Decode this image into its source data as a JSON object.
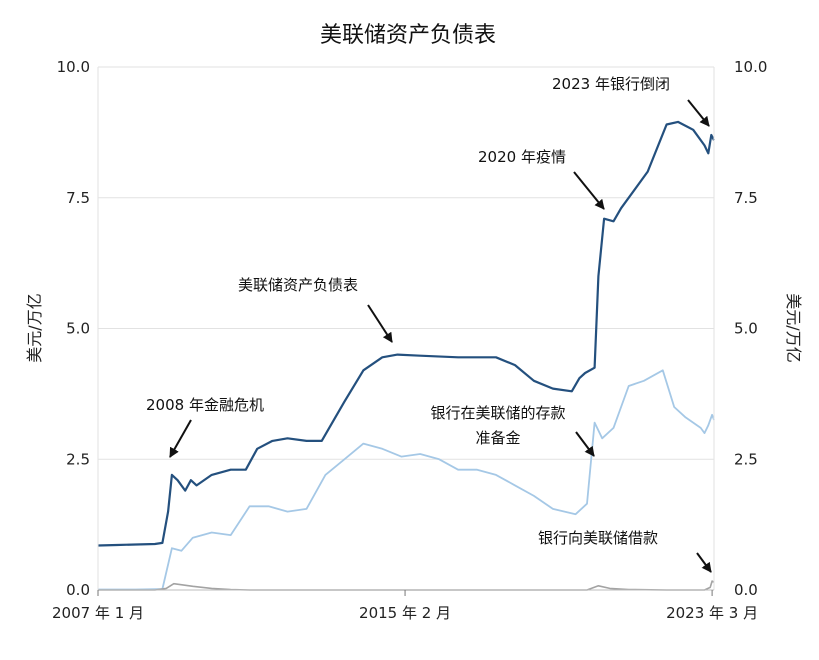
{
  "chart_data": {
    "type": "line",
    "title": "美联储资产负债表",
    "ylabel_left": "美元/万亿",
    "ylabel_right": "美元/万亿",
    "ylim": [
      0,
      10
    ],
    "y_ticks": [
      "0.0",
      "2.5",
      "5.0",
      "7.5",
      "10.0"
    ],
    "x_ticks": [
      "2007 年 1 月",
      "2015 年 2 月",
      "2023 年 3 月"
    ],
    "grid": "horizontal",
    "colors": {
      "balance_sheet": "#24507e",
      "reserves": "#a5c8e6",
      "bank_borrowing": "#a3a3a3",
      "grid": "#e2e2e2",
      "axis": "#333333"
    },
    "series": [
      {
        "name": "美联储资产负债表",
        "x": [
          2007.0,
          2007.5,
          2008.0,
          2008.5,
          2008.7,
          2008.85,
          2008.95,
          2009.1,
          2009.3,
          2009.45,
          2009.6,
          2010.0,
          2010.5,
          2010.9,
          2011.2,
          2011.6,
          2012.0,
          2012.5,
          2012.9,
          2013.5,
          2014.0,
          2014.5,
          2014.9,
          2015.5,
          2016.5,
          2017.5,
          2018.0,
          2018.5,
          2019.0,
          2019.5,
          2019.7,
          2019.85,
          2020.1,
          2020.2,
          2020.35,
          2020.6,
          2020.8,
          2021.5,
          2022.0,
          2022.3,
          2022.7,
          2023.0,
          2023.1,
          2023.18,
          2023.25
        ],
        "values": [
          0.85,
          0.86,
          0.87,
          0.88,
          0.9,
          1.5,
          2.2,
          2.1,
          1.9,
          2.1,
          2.0,
          2.2,
          2.3,
          2.3,
          2.7,
          2.85,
          2.9,
          2.85,
          2.85,
          3.6,
          4.2,
          4.45,
          4.5,
          4.48,
          4.45,
          4.45,
          4.3,
          4.0,
          3.85,
          3.8,
          4.05,
          4.15,
          4.25,
          6.0,
          7.1,
          7.05,
          7.3,
          8.0,
          8.9,
          8.95,
          8.8,
          8.5,
          8.35,
          8.7,
          8.6
        ]
      },
      {
        "name": "银行在美联储的存款准备金",
        "x": [
          2007.0,
          2008.0,
          2008.7,
          2008.95,
          2009.2,
          2009.5,
          2010.0,
          2010.5,
          2011.0,
          2011.5,
          2012.0,
          2012.5,
          2013.0,
          2013.5,
          2014.0,
          2014.5,
          2015.0,
          2015.5,
          2016.0,
          2016.5,
          2017.0,
          2017.5,
          2018.0,
          2018.5,
          2019.0,
          2019.6,
          2019.9,
          2020.1,
          2020.3,
          2020.6,
          2021.0,
          2021.4,
          2021.9,
          2022.2,
          2022.5,
          2022.9,
          2023.0,
          2023.1,
          2023.2,
          2023.25
        ],
        "values": [
          0.01,
          0.01,
          0.02,
          0.8,
          0.75,
          1.0,
          1.1,
          1.05,
          1.6,
          1.6,
          1.5,
          1.55,
          2.2,
          2.5,
          2.8,
          2.7,
          2.55,
          2.6,
          2.5,
          2.3,
          2.3,
          2.2,
          2.0,
          1.8,
          1.55,
          1.45,
          1.65,
          3.2,
          2.9,
          3.1,
          3.9,
          4.0,
          4.2,
          3.5,
          3.3,
          3.1,
          3.0,
          3.15,
          3.35,
          3.25
        ]
      },
      {
        "name": "银行向美联储借款",
        "x": [
          2007.0,
          2008.5,
          2008.8,
          2009.0,
          2009.5,
          2010.0,
          2010.5,
          2011.0,
          2015.0,
          2019.5,
          2019.9,
          2020.2,
          2020.5,
          2021.0,
          2022.0,
          2023.0,
          2023.15,
          2023.2,
          2023.25
        ],
        "values": [
          0.0,
          0.0,
          0.03,
          0.12,
          0.07,
          0.03,
          0.01,
          0.0,
          0.0,
          0.0,
          0.0,
          0.08,
          0.03,
          0.01,
          0.0,
          0.0,
          0.05,
          0.17,
          0.15
        ]
      }
    ],
    "annotations": [
      {
        "text": "2008 年金融危机"
      },
      {
        "text": "美联储资产负债表"
      },
      {
        "text": "2020 年疫情"
      },
      {
        "text": "2023 年银行倒闭"
      },
      {
        "text": "银行在美联储的存款"
      },
      {
        "text": "准备金"
      },
      {
        "text": "银行向美联储借款"
      }
    ]
  }
}
